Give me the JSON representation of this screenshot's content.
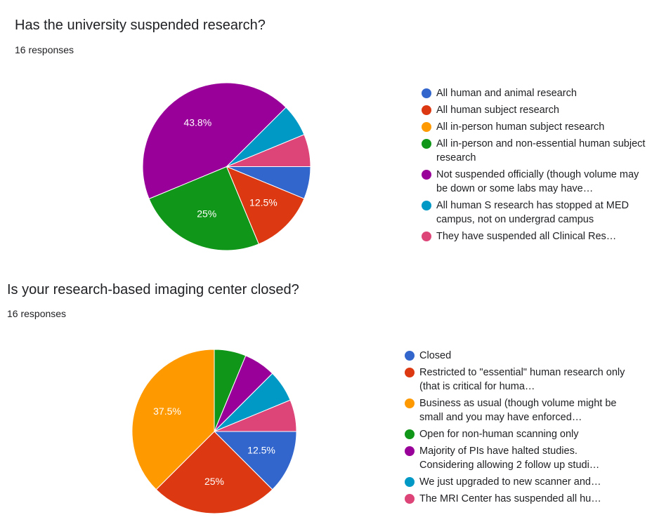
{
  "charts": [
    {
      "title": "Has the university suspended research?",
      "responses": "16 responses",
      "chart_data": {
        "type": "pie",
        "total_responses": 16,
        "labels": [
          "All human and animal research",
          "All human subject research",
          "All in-person human subject research",
          "All in-person and non-essential human subject research",
          "Not suspended officially (though volume may be down or some labs may have…",
          "All human S research has stopped at MED campus, not on undergrad campus",
          "They have suspended all Clinical Res…"
        ],
        "values": [
          6.25,
          12.5,
          0,
          25,
          43.8,
          6.25,
          6.25
        ],
        "data_labels": [
          "",
          "12.5%",
          "",
          "25%",
          "43.8%",
          "",
          ""
        ],
        "colors": [
          "#3366cc",
          "#dc3912",
          "#ff9900",
          "#109618",
          "#990099",
          "#0099c6",
          "#dd4477"
        ],
        "legend_position": "right"
      }
    },
    {
      "title": "Is your research-based imaging center closed?",
      "responses": "16 responses",
      "chart_data": {
        "type": "pie",
        "total_responses": 16,
        "labels": [
          "Closed",
          "Restricted to \"essential\" human research only (that is critical for huma…",
          "Business as usual (though volume might be small and you may have enforced…",
          "Open for non-human scanning only",
          "Majority of PIs have halted studies. Considering allowing 2 follow up studi…",
          "We just upgraded to new scanner and…",
          "The MRI Center has suspended all hu…"
        ],
        "values": [
          12.5,
          25,
          37.5,
          6.25,
          6.25,
          6.25,
          6.25
        ],
        "data_labels": [
          "12.5%",
          "25%",
          "37.5%",
          "",
          "",
          "",
          ""
        ],
        "colors": [
          "#3366cc",
          "#dc3912",
          "#ff9900",
          "#109618",
          "#990099",
          "#0099c6",
          "#dd4477"
        ],
        "legend_position": "right"
      }
    }
  ]
}
